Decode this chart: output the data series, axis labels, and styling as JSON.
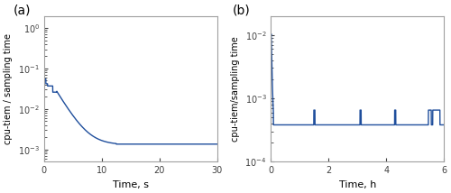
{
  "line_color": "#1f4e9c",
  "line_width": 1.0,
  "panel_a": {
    "label": "(a)",
    "xlabel": "Time, s",
    "ylabel": "cpu-tiem / sampling time",
    "xlim": [
      0,
      30
    ],
    "ylim": [
      0.0005,
      2.0
    ],
    "xticks": [
      0,
      10,
      20,
      30
    ],
    "ytick_vals": [
      0.001,
      0.01,
      0.1,
      1.0
    ],
    "ytick_labels": [
      "10⁻³",
      "10⁻²",
      "10⁻¹",
      "10⁰"
    ]
  },
  "panel_b": {
    "label": "(b)",
    "xlabel": "Time, h",
    "ylabel": "cpu-tiem/sampling time",
    "xlim": [
      0,
      6
    ],
    "ylim": [
      0.0001,
      0.02
    ],
    "xticks": [
      0,
      2,
      4,
      6
    ],
    "ytick_vals": [
      0.0001,
      0.001,
      0.01
    ],
    "ytick_labels": [
      "10⁻⁴",
      "10⁻³",
      "10⁻²"
    ]
  },
  "spine_color": "#a0a0a0",
  "tick_color": "#404040",
  "label_fontsize": 8,
  "tick_fontsize": 7,
  "panel_label_fontsize": 10
}
